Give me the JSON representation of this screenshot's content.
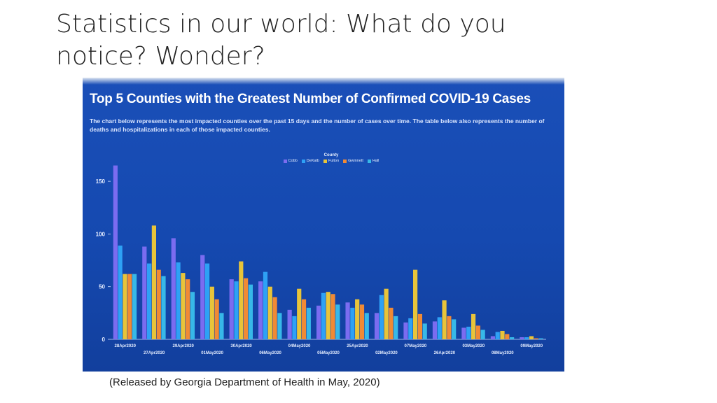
{
  "slide": {
    "title": "Statistics in our world: What do you notice? Wonder?",
    "caption": "(Released by Georgia Department of Health in May, 2020)"
  },
  "chart_data": {
    "type": "bar",
    "title": "Top 5 Counties with the Greatest Number of Confirmed COVID-19 Cases",
    "description": "The chart below represents the most impacted counties over the past 15 days and the number of cases over time. The table below also represents the number of deaths and hospitalizations in each of those impacted counties.",
    "legend_title": "County",
    "legend_position": "top-center",
    "xlabel": "",
    "ylabel": "",
    "ylim": [
      0,
      170
    ],
    "yticks": [
      0,
      50,
      100,
      150
    ],
    "grid": false,
    "categories": [
      "28Apr2020",
      "27Apr2020",
      "29Apr2020",
      "01May2020",
      "30Apr2020",
      "06May2020",
      "04May2020",
      "05May2020",
      "25Apr2020",
      "02May2020",
      "07May2020",
      "26Apr2020",
      "03May2020",
      "08May2020",
      "09May2020"
    ],
    "category_label_rows": [
      "upper",
      "lower",
      "upper",
      "lower",
      "upper",
      "lower",
      "upper",
      "lower",
      "upper",
      "lower",
      "upper",
      "lower",
      "upper",
      "lower",
      "upper"
    ],
    "series": [
      {
        "name": "Cobb",
        "color": "#7b6cf0",
        "values": [
          165,
          88,
          96,
          80,
          57,
          55,
          28,
          32,
          35,
          25,
          16,
          17,
          11,
          3,
          2
        ]
      },
      {
        "name": "DeKalb",
        "color": "#2ea1f5",
        "values": [
          89,
          72,
          73,
          72,
          55,
          64,
          22,
          44,
          30,
          42,
          20,
          21,
          12,
          7,
          2
        ]
      },
      {
        "name": "Fulton",
        "color": "#e8c43a",
        "values": [
          62,
          108,
          63,
          50,
          74,
          50,
          48,
          45,
          38,
          48,
          66,
          37,
          24,
          8,
          3
        ]
      },
      {
        "name": "Gwinnett",
        "color": "#f08a35",
        "values": [
          62,
          66,
          57,
          38,
          58,
          40,
          38,
          43,
          33,
          30,
          24,
          22,
          13,
          5,
          1
        ]
      },
      {
        "name": "Hall",
        "color": "#37b8e8",
        "values": [
          62,
          60,
          45,
          25,
          52,
          25,
          30,
          33,
          25,
          22,
          15,
          19,
          9,
          2,
          1
        ]
      }
    ]
  }
}
